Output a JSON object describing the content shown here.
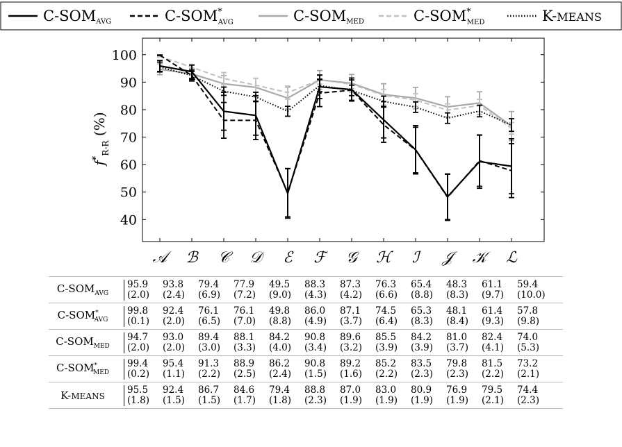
{
  "chart_data": {
    "type": "line",
    "categories": [
      "𝒜",
      "ℬ",
      "𝒞",
      "𝒟",
      "ℰ",
      "ℱ",
      "𝒢",
      "ℋ",
      "ℐ",
      "𝒥",
      "𝒦",
      "ℒ"
    ],
    "ylabel": "f*R-R (%)",
    "ylim": [
      32,
      106
    ],
    "yticks": [
      40,
      50,
      60,
      70,
      80,
      90,
      100
    ],
    "legend_position": "top",
    "series": [
      {
        "name": "C-SOMAVG",
        "color": "#000000",
        "dash": "solid",
        "values": [
          95.9,
          93.8,
          79.4,
          77.9,
          49.5,
          88.3,
          87.3,
          76.3,
          65.4,
          48.3,
          61.1,
          59.4
        ],
        "errors": [
          2.0,
          2.4,
          6.9,
          7.2,
          9.0,
          4.3,
          4.2,
          6.6,
          8.8,
          8.3,
          9.7,
          10.0
        ]
      },
      {
        "name": "C-SOM*AVG",
        "color": "#000000",
        "dash": "dashed",
        "values": [
          99.8,
          92.4,
          76.1,
          76.1,
          49.8,
          86.0,
          87.1,
          74.5,
          65.3,
          48.1,
          61.4,
          57.8
        ],
        "errors": [
          0.1,
          2.0,
          6.5,
          7.0,
          8.8,
          4.9,
          3.7,
          6.4,
          8.3,
          8.4,
          9.3,
          9.8
        ]
      },
      {
        "name": "C-SOMMED",
        "color": "#a8a8a8",
        "dash": "solid",
        "values": [
          94.7,
          93.0,
          89.4,
          88.1,
          84.2,
          90.8,
          89.6,
          85.5,
          84.2,
          81.0,
          82.4,
          74.0
        ],
        "errors": [
          2.0,
          2.0,
          3.0,
          3.3,
          4.0,
          3.4,
          3.2,
          3.9,
          3.9,
          3.7,
          4.1,
          5.3
        ]
      },
      {
        "name": "C-SOM*MED",
        "color": "#c0c0c0",
        "dash": "dashed",
        "values": [
          99.4,
          95.4,
          91.3,
          88.9,
          86.2,
          90.8,
          89.2,
          85.2,
          83.5,
          79.8,
          81.5,
          73.2
        ],
        "errors": [
          0.2,
          1.1,
          2.2,
          2.5,
          2.4,
          1.5,
          1.6,
          2.2,
          2.3,
          2.3,
          2.2,
          2.1
        ]
      },
      {
        "name": "K-MEANS",
        "color": "#000000",
        "dash": "dotted",
        "values": [
          95.5,
          92.4,
          86.7,
          84.6,
          79.4,
          88.8,
          87.0,
          83.0,
          80.9,
          76.9,
          79.5,
          74.4
        ],
        "errors": [
          1.8,
          1.5,
          1.5,
          1.7,
          1.8,
          2.3,
          1.9,
          1.9,
          1.9,
          1.9,
          2.1,
          2.3
        ]
      }
    ]
  },
  "table": {
    "rows": [
      {
        "label_base": "C-SOM",
        "label_star": "",
        "label_sub": "AVG",
        "means": [
          "95.9",
          "93.8",
          "79.4",
          "77.9",
          "49.5",
          "88.3",
          "87.3",
          "76.3",
          "65.4",
          "48.3",
          "61.1",
          "59.4"
        ],
        "sds": [
          "(2.0)",
          "(2.4)",
          "(6.9)",
          "(7.2)",
          "(9.0)",
          "(4.3)",
          "(4.2)",
          "(6.6)",
          "(8.8)",
          "(8.3)",
          "(9.7)",
          "(10.0)"
        ]
      },
      {
        "label_base": "C-SOM",
        "label_star": "*",
        "label_sub": "AVG",
        "means": [
          "99.8",
          "92.4",
          "76.1",
          "76.1",
          "49.8",
          "86.0",
          "87.1",
          "74.5",
          "65.3",
          "48.1",
          "61.4",
          "57.8"
        ],
        "sds": [
          "(0.1)",
          "(2.0)",
          "(6.5)",
          "(7.0)",
          "(8.8)",
          "(4.9)",
          "(3.7)",
          "(6.4)",
          "(8.3)",
          "(8.4)",
          "(9.3)",
          "(9.8)"
        ]
      },
      {
        "label_base": "C-SOM",
        "label_star": "",
        "label_sub": "MED",
        "means": [
          "94.7",
          "93.0",
          "89.4",
          "88.1",
          "84.2",
          "90.8",
          "89.6",
          "85.5",
          "84.2",
          "81.0",
          "82.4",
          "74.0"
        ],
        "sds": [
          "(2.0)",
          "(2.0)",
          "(3.0)",
          "(3.3)",
          "(4.0)",
          "(3.4)",
          "(3.2)",
          "(3.9)",
          "(3.9)",
          "(3.7)",
          "(4.1)",
          "(5.3)"
        ]
      },
      {
        "label_base": "C-SOM",
        "label_star": "*",
        "label_sub": "MED",
        "means": [
          "99.4",
          "95.4",
          "91.3",
          "88.9",
          "86.2",
          "90.8",
          "89.2",
          "85.2",
          "83.5",
          "79.8",
          "81.5",
          "73.2"
        ],
        "sds": [
          "(0.2)",
          "(1.1)",
          "(2.2)",
          "(2.5)",
          "(2.4)",
          "(1.5)",
          "(1.6)",
          "(2.2)",
          "(2.3)",
          "(2.3)",
          "(2.2)",
          "(2.1)"
        ]
      },
      {
        "label_base": "K-MEANS",
        "label_star": "",
        "label_sub": "",
        "means": [
          "95.5",
          "92.4",
          "86.7",
          "84.6",
          "79.4",
          "88.8",
          "87.0",
          "83.0",
          "80.9",
          "76.9",
          "79.5",
          "74.4"
        ],
        "sds": [
          "(1.8)",
          "(1.5)",
          "(1.5)",
          "(1.7)",
          "(1.8)",
          "(2.3)",
          "(1.9)",
          "(1.9)",
          "(1.9)",
          "(1.9)",
          "(2.1)",
          "(2.3)"
        ]
      }
    ]
  }
}
